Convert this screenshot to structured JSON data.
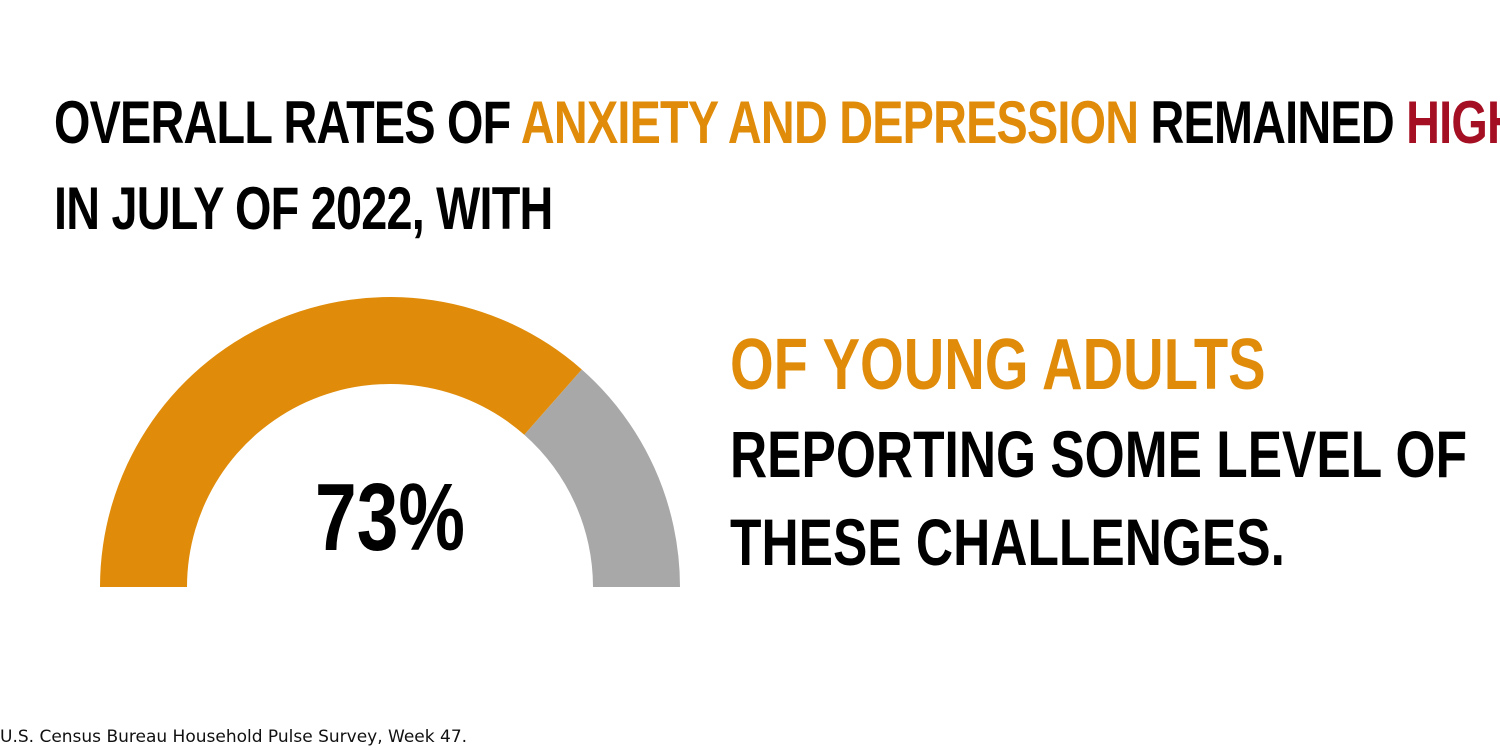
{
  "colors": {
    "accent": "#e08c0a",
    "highlight": "#a50f23",
    "remainder": "#a8a8a8",
    "text": "#000000"
  },
  "headline": {
    "part1": "OVERALL RATES OF ",
    "part2": "ANXIETY AND DEPRESSION",
    "part3": " REMAINED ",
    "part4": "HIGH",
    "line2": "IN JULY OF 2022, WITH"
  },
  "chart_data": {
    "type": "gauge",
    "value": 73,
    "max": 100,
    "value_label": "73%"
  },
  "statement": {
    "accent_line": "OF YOUNG ADULTS",
    "line1": "REPORTING SOME LEVEL OF",
    "line2": "THESE CHALLENGES."
  },
  "source": "U.S. Census Bureau Household Pulse Survey, Week 47."
}
